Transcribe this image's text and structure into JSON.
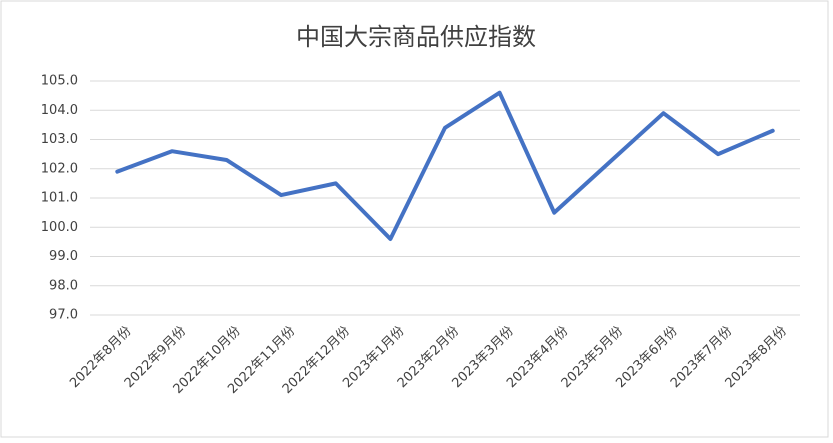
{
  "chart_data": {
    "type": "line",
    "title": "中国大宗商品供应指数",
    "categories": [
      "2022年8月份",
      "2022年9月份",
      "2022年10月份",
      "2022年11月份",
      "2022年12月份",
      "2023年1月份",
      "2023年2月份",
      "2023年3月份",
      "2023年4月份",
      "2023年5月份",
      "2023年6月份",
      "2023年7月份",
      "2023年8月份"
    ],
    "series": [
      {
        "name": "中国大宗商品供应指数",
        "color": "#4472c4",
        "values": [
          101.9,
          102.6,
          102.3,
          101.1,
          101.5,
          99.6,
          103.4,
          104.6,
          100.5,
          102.2,
          103.9,
          102.5,
          103.3
        ]
      }
    ],
    "ylim": [
      97,
      105
    ],
    "yticks": [
      {
        "value": 97,
        "label": "97.0"
      },
      {
        "value": 98,
        "label": "98.0"
      },
      {
        "value": 99,
        "label": "99.0"
      },
      {
        "value": 100,
        "label": "100.0"
      },
      {
        "value": 101,
        "label": "101.0"
      },
      {
        "value": 102,
        "label": "102.0"
      },
      {
        "value": 103,
        "label": "103.0"
      },
      {
        "value": 104,
        "label": "104.0"
      },
      {
        "value": 105,
        "label": "105.0"
      }
    ],
    "grid": true
  }
}
